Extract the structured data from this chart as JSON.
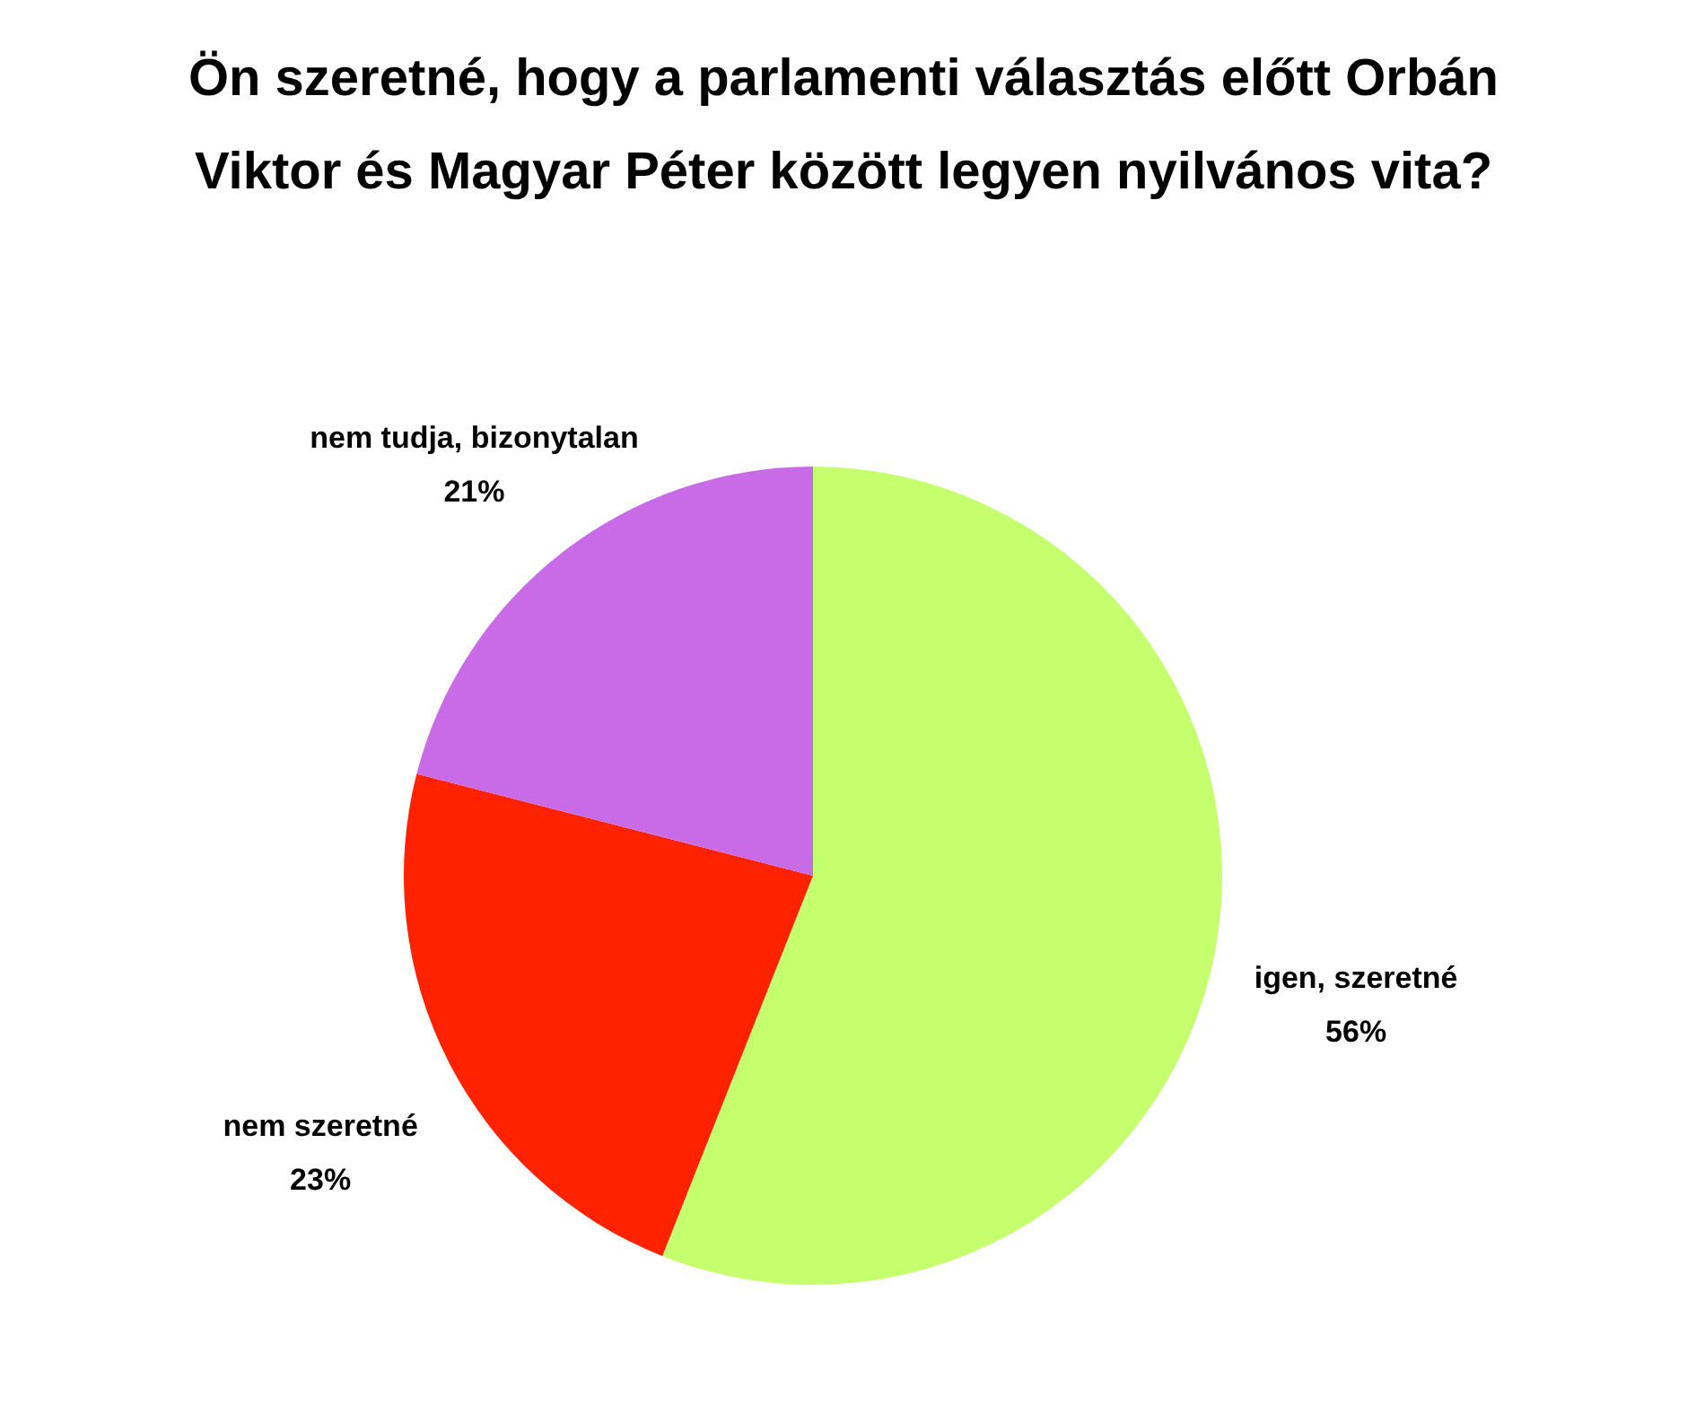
{
  "chart_data": {
    "type": "pie",
    "title": "Ön szeretné, hogy a parlamenti választás előtt Orbán\nViktor és Magyar Péter között legyen nyilvános vita?",
    "categories": [
      "igen, szeretné",
      "nem szeretné",
      "nem tudja, bizonytalan"
    ],
    "values": [
      56,
      23,
      21
    ],
    "value_labels": [
      "56%",
      "23%",
      "21%"
    ],
    "colors": [
      "#c5ff6e",
      "#ff2200",
      "#c96be6"
    ]
  }
}
